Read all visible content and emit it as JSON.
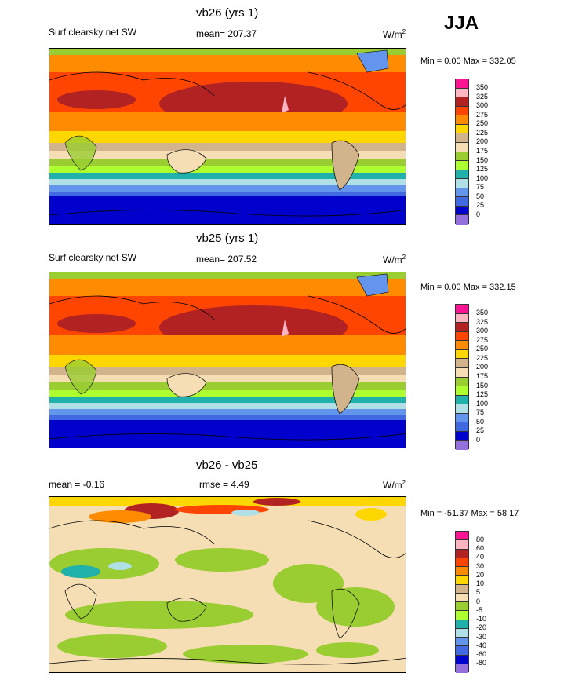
{
  "season": "JJA",
  "panels": [
    {
      "title": "vb26 (yrs 1)",
      "left_label": "Surf clearsky net SW",
      "center_label": "mean= 207.37",
      "units": "W/m",
      "units_sup": "2",
      "minmax": "Min =   0.00 Max = 332.05"
    },
    {
      "title": "vb25 (yrs 1)",
      "left_label": "Surf clearsky net SW",
      "center_label": "mean= 207.52",
      "units": "W/m",
      "units_sup": "2",
      "minmax": "Min =   0.00 Max = 332.15"
    },
    {
      "title": "vb26 - vb25",
      "left_label": "mean =  -0.16",
      "center_label": "rmse =   4.49",
      "units": "W/m",
      "units_sup": "2",
      "minmax": "Min = -51.37 Max =  58.17"
    }
  ],
  "legends": {
    "abs_levels": [
      "350",
      "325",
      "300",
      "275",
      "250",
      "225",
      "200",
      "175",
      "150",
      "125",
      "100",
      "75",
      "50",
      "25",
      "0"
    ],
    "diff_levels": [
      "80",
      "60",
      "40",
      "30",
      "20",
      "10",
      "5",
      "0",
      "-5",
      "-10",
      "-20",
      "-30",
      "-40",
      "-60",
      "-80"
    ],
    "colors": [
      "#ff1493",
      "#ffb6c1",
      "#b22222",
      "#ff4500",
      "#ff8c00",
      "#ffd700",
      "#d2b48c",
      "#f5deb3",
      "#9acd32",
      "#adff2f",
      "#20b2aa",
      "#b0e0e6",
      "#6495ed",
      "#4169e1",
      "#0000cd",
      "#9370db"
    ]
  }
}
